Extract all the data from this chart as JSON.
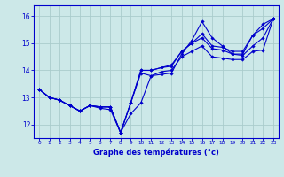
{
  "xlabel": "Graphe des températures (°c)",
  "background_color": "#cce8e8",
  "grid_color": "#aacccc",
  "line_color": "#0000cc",
  "xlim": [
    -0.5,
    23.5
  ],
  "ylim": [
    11.5,
    16.4
  ],
  "yticks": [
    12,
    13,
    14,
    15,
    16
  ],
  "xticks": [
    0,
    1,
    2,
    3,
    4,
    5,
    6,
    7,
    8,
    9,
    10,
    11,
    12,
    13,
    14,
    15,
    16,
    17,
    18,
    19,
    20,
    21,
    22,
    23
  ],
  "series1": [
    13.3,
    13.0,
    12.9,
    12.7,
    12.5,
    12.7,
    12.6,
    12.55,
    11.7,
    12.4,
    12.8,
    13.8,
    13.85,
    13.9,
    14.6,
    15.1,
    15.8,
    15.2,
    14.9,
    14.6,
    14.6,
    15.3,
    15.7,
    15.9
  ],
  "series2": [
    13.3,
    13.0,
    12.9,
    12.7,
    12.5,
    12.7,
    12.65,
    12.65,
    11.7,
    12.8,
    14.0,
    14.0,
    14.1,
    14.15,
    14.7,
    15.0,
    15.35,
    14.9,
    14.85,
    14.7,
    14.7,
    15.3,
    15.55,
    15.9
  ],
  "series3": [
    13.3,
    13.0,
    12.9,
    12.7,
    12.5,
    12.7,
    12.65,
    12.65,
    11.7,
    12.8,
    14.0,
    14.0,
    14.1,
    14.2,
    14.7,
    15.0,
    15.2,
    14.8,
    14.75,
    14.6,
    14.55,
    14.9,
    15.2,
    15.9
  ],
  "series4": [
    13.3,
    13.0,
    12.9,
    12.7,
    12.5,
    12.7,
    12.65,
    12.65,
    11.7,
    12.8,
    13.9,
    13.8,
    13.95,
    14.0,
    14.5,
    14.7,
    14.9,
    14.5,
    14.45,
    14.4,
    14.4,
    14.7,
    14.75,
    15.9
  ]
}
